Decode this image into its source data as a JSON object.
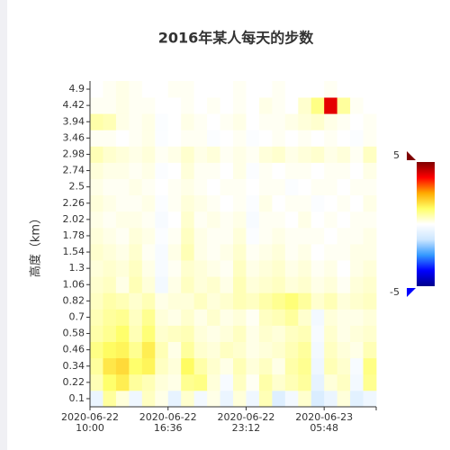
{
  "chart_data": {
    "type": "heatmap",
    "title": "2016年某人每天的步数",
    "y_label": "高度（km）",
    "categories": [
      "2020-06-22 10:00",
      null,
      null,
      null,
      null,
      null,
      "2020-06-22 16:36",
      null,
      null,
      null,
      null,
      null,
      "2020-06-22 23:12",
      null,
      null,
      null,
      null,
      null,
      "2020-06-23 05:48",
      null,
      null,
      null
    ],
    "y_categories": [
      0.1,
      0.22,
      0.34,
      0.46,
      0.58,
      0.7,
      0.82,
      1.06,
      1.3,
      1.54,
      1.78,
      2.02,
      2.26,
      2.5,
      2.74,
      2.98,
      3.46,
      3.94,
      4.42,
      4.9
    ],
    "values": [
      [
        -0.5,
        0.8,
        0.3,
        -0.4,
        0.5,
        0.2,
        -0.6,
        0.4,
        -0.3,
        0.2,
        -0.5,
        0.3,
        -0.4,
        0.6,
        -0.8,
        -0.3,
        0.4,
        -0.9,
        -0.5,
        0.3,
        -0.7,
        -0.4
      ],
      [
        0.6,
        1.2,
        1.5,
        0.8,
        0.6,
        0.3,
        0.2,
        0.9,
        1.0,
        0.3,
        -0.2,
        0.5,
        0.1,
        0.7,
        0.4,
        0.6,
        0.8,
        -0.6,
        0.3,
        0.5,
        -0.3,
        0.9
      ],
      [
        0.8,
        1.6,
        1.8,
        1.2,
        1.4,
        0.5,
        0.3,
        1.3,
        0.7,
        0.4,
        0.2,
        0.6,
        0.3,
        0.5,
        0.2,
        0.7,
        0.9,
        -0.4,
        0.6,
        0.4,
        -0.2,
        1.0
      ],
      [
        1.0,
        1.3,
        1.4,
        0.9,
        1.5,
        0.6,
        0.2,
        0.8,
        0.4,
        0.3,
        0.5,
        0.4,
        0.2,
        0.3,
        0.4,
        0.6,
        0.8,
        -0.3,
        0.5,
        0.3,
        0.2,
        0.6
      ],
      [
        0.7,
        0.9,
        1.2,
        0.6,
        1.1,
        0.4,
        0.5,
        0.6,
        0.3,
        0.2,
        0.3,
        0.5,
        0.2,
        0.4,
        0.3,
        0.5,
        0.6,
        -0.2,
        0.4,
        0.2,
        0.3,
        0.4
      ],
      [
        0.6,
        0.8,
        0.9,
        0.5,
        0.9,
        0.3,
        0.2,
        0.4,
        0.2,
        0.4,
        0.2,
        0.3,
        0.1,
        0.5,
        0.6,
        0.8,
        0.4,
        -0.3,
        0.3,
        0.2,
        0.2,
        0.3
      ],
      [
        0.5,
        0.7,
        0.6,
        0.4,
        0.6,
        0.2,
        0.3,
        0.3,
        0.5,
        0.3,
        0.4,
        0.6,
        0.5,
        0.7,
        0.9,
        1.1,
        0.8,
        0.4,
        0.6,
        0.3,
        0.4,
        0.5
      ],
      [
        0.4,
        0.5,
        0.2,
        0.6,
        0.3,
        -0.3,
        0.2,
        0.5,
        0.3,
        0.4,
        0.2,
        0.6,
        0.3,
        0.4,
        0.5,
        0.3,
        0.4,
        0.2,
        0.3,
        0.1,
        0.3,
        0.4
      ],
      [
        0.3,
        0.4,
        0.3,
        0.5,
        0.2,
        -0.2,
        0.1,
        0.4,
        0.3,
        0.2,
        0.1,
        0.5,
        0.2,
        0.3,
        0.4,
        0.2,
        0.3,
        0.1,
        0.2,
        0.0,
        0.2,
        0.3
      ],
      [
        0.4,
        0.3,
        0.2,
        0.4,
        0.1,
        -0.2,
        0.2,
        0.6,
        0.2,
        0.1,
        0.2,
        0.4,
        0.1,
        0.2,
        0.3,
        0.1,
        0.2,
        0.0,
        0.1,
        0.1,
        0.2,
        0.2
      ],
      [
        0.3,
        0.2,
        0.1,
        0.3,
        0.2,
        -0.1,
        0.1,
        0.5,
        0.2,
        0.1,
        0.1,
        0.3,
        -0.1,
        0.1,
        0.2,
        0.1,
        0.1,
        0.1,
        0.0,
        0.1,
        0.1,
        0.2
      ],
      [
        0.2,
        0.1,
        0.2,
        0.2,
        0.1,
        -0.2,
        0.0,
        0.4,
        0.1,
        0.2,
        0.1,
        0.2,
        -0.2,
        0.1,
        0.1,
        0.0,
        0.2,
        0.0,
        0.1,
        0.0,
        0.1,
        0.1
      ],
      [
        0.3,
        0.2,
        0.1,
        0.1,
        0.2,
        -0.1,
        0.1,
        0.3,
        0.2,
        0.1,
        0.0,
        0.1,
        -0.1,
        0.2,
        0.0,
        0.1,
        0.1,
        -0.1,
        0.0,
        0.1,
        0.0,
        0.2
      ],
      [
        0.2,
        0.1,
        0.1,
        0.2,
        0.1,
        0.0,
        0.1,
        0.2,
        0.1,
        0.0,
        0.1,
        0.1,
        0.0,
        0.1,
        0.1,
        -0.1,
        0.0,
        0.1,
        0.1,
        0.0,
        0.1,
        0.1
      ],
      [
        0.3,
        0.2,
        0.2,
        0.1,
        0.2,
        -0.1,
        0.0,
        0.3,
        0.1,
        0.1,
        0.0,
        0.2,
        -0.1,
        0.1,
        0.0,
        0.1,
        0.1,
        0.0,
        0.1,
        0.1,
        0.0,
        0.2
      ],
      [
        0.6,
        0.4,
        0.3,
        0.2,
        0.3,
        0.1,
        0.2,
        0.4,
        0.2,
        0.3,
        0.1,
        0.2,
        0.1,
        0.3,
        0.4,
        0.2,
        0.3,
        0.4,
        0.2,
        0.3,
        0.1,
        0.5
      ],
      [
        0.1,
        0.1,
        0.0,
        0.1,
        0.2,
        -0.1,
        0.0,
        0.1,
        0.1,
        -0.1,
        0.0,
        0.1,
        -0.1,
        0.0,
        0.1,
        0.0,
        0.1,
        0.0,
        0.1,
        0.0,
        -0.1,
        0.1
      ],
      [
        0.7,
        0.6,
        0.2,
        0.1,
        0.2,
        -0.1,
        0.0,
        0.2,
        0.1,
        0.0,
        0.1,
        0.2,
        0.0,
        0.1,
        0.1,
        0.2,
        0.3,
        0.4,
        0.2,
        0.1,
        0.0,
        0.1
      ],
      [
        0.1,
        0.1,
        0.2,
        0.1,
        0.1,
        0.0,
        0.0,
        0.1,
        0.0,
        0.1,
        0.0,
        0.1,
        0.0,
        0.2,
        0.1,
        0.0,
        0.4,
        1.0,
        4.0,
        0.8,
        0.1,
        0.0
      ],
      [
        0.0,
        0.1,
        0.2,
        0.1,
        0.0,
        0.0,
        0.1,
        0.1,
        0.0,
        0.0,
        0.0,
        0.1,
        0.0,
        0.0,
        0.1,
        0.0,
        0.0,
        0.0,
        0.1,
        0.0,
        0.0,
        0.0
      ]
    ],
    "colorbar": {
      "min": -5,
      "max": 5,
      "colors": [
        "#00008b",
        "#0000ff",
        "#3399ff",
        "#cce6ff",
        "#ffffff",
        "#ffff66",
        "#ffaa00",
        "#ff0000",
        "#7f0000"
      ]
    }
  }
}
